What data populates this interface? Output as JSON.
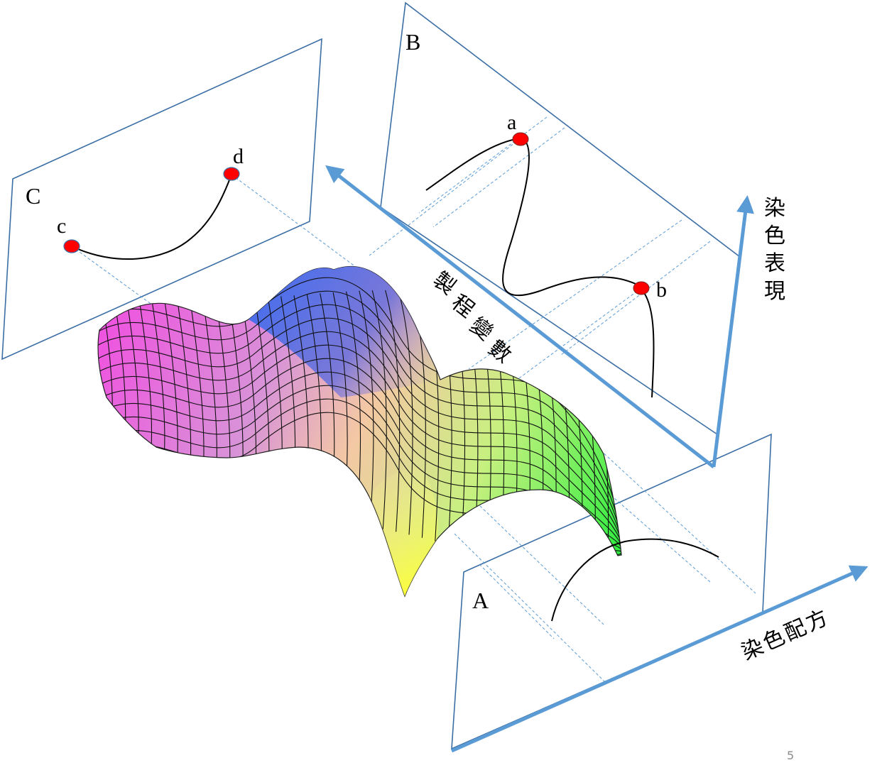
{
  "planes": {
    "a_label": "A",
    "b_label": "B",
    "c_label": "C"
  },
  "points": {
    "a": "a",
    "b": "b",
    "c": "c",
    "d": "d"
  },
  "axes": {
    "dye_performance": [
      "染",
      "色",
      "表",
      "現"
    ],
    "process_variables": [
      "製",
      "程",
      "變",
      "數"
    ],
    "dye_formula": "染色配方"
  },
  "page_number": "5",
  "colors": {
    "plane_edge": "#3b6ea5",
    "axis_arrow": "#5b9bd5",
    "guide_line": "#5b9bd5",
    "point_fill": "#ff0000",
    "surface_magenta": "#f04fe0",
    "surface_blue": "#3f6cf0",
    "surface_green": "#30ee40",
    "surface_yellow": "#ffff40"
  }
}
